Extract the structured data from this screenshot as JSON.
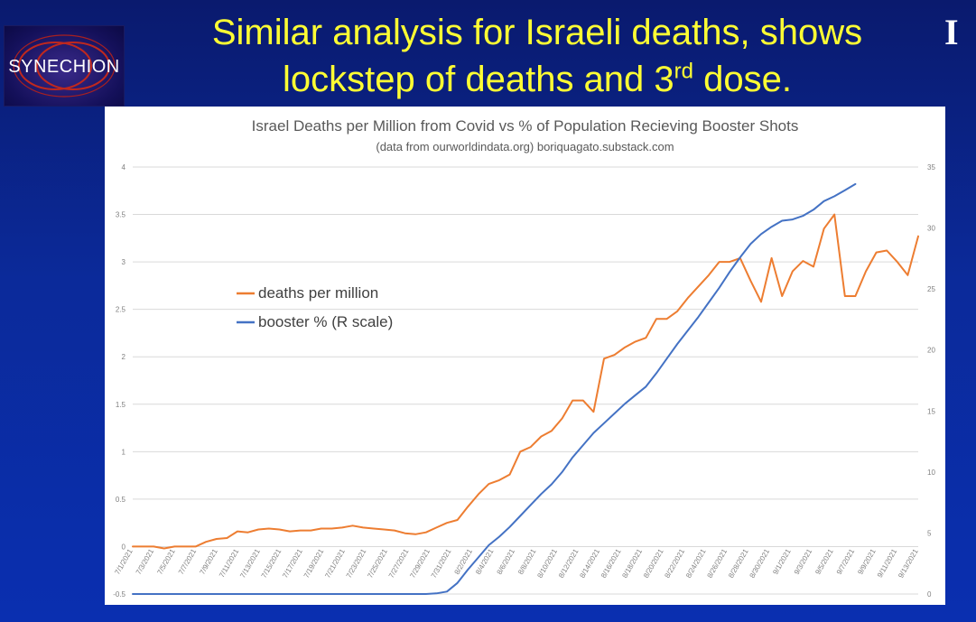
{
  "slide": {
    "title_line1": "Similar analysis for Israeli deaths, shows",
    "title_line2_pre": "lockstep of deaths and 3",
    "title_line2_sup": "rd",
    "title_line2_post": " dose.",
    "corner_mark": "I",
    "logo_text": "SYNECHION"
  },
  "chart_data": {
    "type": "line",
    "title": "Israel Deaths per Million from Covid vs % of Population Recieving Booster Shots",
    "subtitle": "(data from ourworldindata.org)  boriquagato.substack.com",
    "x_tick_labels": [
      "7/1/2021",
      "7/3/2021",
      "7/5/2021",
      "7/7/2021",
      "7/9/2021",
      "7/11/2021",
      "7/13/2021",
      "7/15/2021",
      "7/17/2021",
      "7/19/2021",
      "7/21/2021",
      "7/23/2021",
      "7/25/2021",
      "7/27/2021",
      "7/29/2021",
      "7/31/2021",
      "8/2/2021",
      "8/4/2021",
      "8/6/2021",
      "8/8/2021",
      "8/10/2021",
      "8/12/2021",
      "8/14/2021",
      "8/16/2021",
      "8/18/2021",
      "8/20/2021",
      "8/22/2021",
      "8/24/2021",
      "8/26/2021",
      "8/28/2021",
      "8/30/2021",
      "9/1/2021",
      "9/3/2021",
      "9/5/2021",
      "9/7/2021",
      "9/9/2021",
      "9/11/2021",
      "9/13/2021"
    ],
    "y_left_ticks": [
      "4",
      "3.5",
      "3",
      "2.5",
      "2",
      "1.5",
      "1",
      "0.5",
      "0",
      "-0.5"
    ],
    "y_right_ticks": [
      "35",
      "30",
      "25",
      "20",
      "15",
      "10",
      "5",
      "0"
    ],
    "ylim_left": [
      -0.5,
      4
    ],
    "ylim_right": [
      0,
      35
    ],
    "grid": true,
    "legend_position": "upper-left",
    "series": [
      {
        "name": "deaths per million",
        "axis": "left",
        "color": "#ed7d31",
        "values": [
          0,
          0,
          0,
          -0.02,
          0,
          0,
          0,
          0.05,
          0.08,
          0.09,
          0.16,
          0.15,
          0.18,
          0.19,
          0.18,
          0.16,
          0.17,
          0.17,
          0.19,
          0.19,
          0.2,
          0.22,
          0.2,
          0.19,
          0.18,
          0.17,
          0.14,
          0.13,
          0.15,
          0.2,
          0.25,
          0.28,
          0.42,
          0.55,
          0.66,
          0.7,
          0.76,
          1.0,
          1.05,
          1.16,
          1.22,
          1.35,
          1.54,
          1.54,
          1.42,
          1.98,
          2.02,
          2.1,
          2.16,
          2.2,
          2.4,
          2.4,
          2.48,
          2.62,
          2.74,
          2.86,
          3.0,
          3.0,
          3.04,
          2.8,
          2.58,
          3.04,
          2.64,
          2.9,
          3.01,
          2.95,
          3.35,
          3.5,
          2.64,
          2.64,
          2.9,
          3.1,
          3.12,
          3.0,
          2.86,
          3.27
        ]
      },
      {
        "name": "booster % (R scale)",
        "axis": "right",
        "color": "#4472c4",
        "values": [
          0,
          0,
          0,
          0,
          0,
          0,
          0,
          0,
          0,
          0,
          0,
          0,
          0,
          0,
          0,
          0,
          0,
          0,
          0,
          0,
          0,
          0,
          0,
          0,
          0,
          0,
          0,
          0,
          0,
          0.05,
          0.2,
          0.9,
          2.0,
          3.0,
          4.0,
          4.7,
          5.5,
          6.4,
          7.3,
          8.2,
          9.0,
          10.0,
          11.2,
          12.2,
          13.2,
          14.0,
          14.8,
          15.6,
          16.3,
          17.0,
          18.1,
          19.3,
          20.5,
          21.6,
          22.7,
          23.9,
          25.1,
          26.4,
          27.6,
          28.7,
          29.5,
          30.1,
          30.6,
          30.7,
          31.0,
          31.5,
          32.2,
          32.6,
          33.1,
          33.6
        ]
      }
    ]
  }
}
